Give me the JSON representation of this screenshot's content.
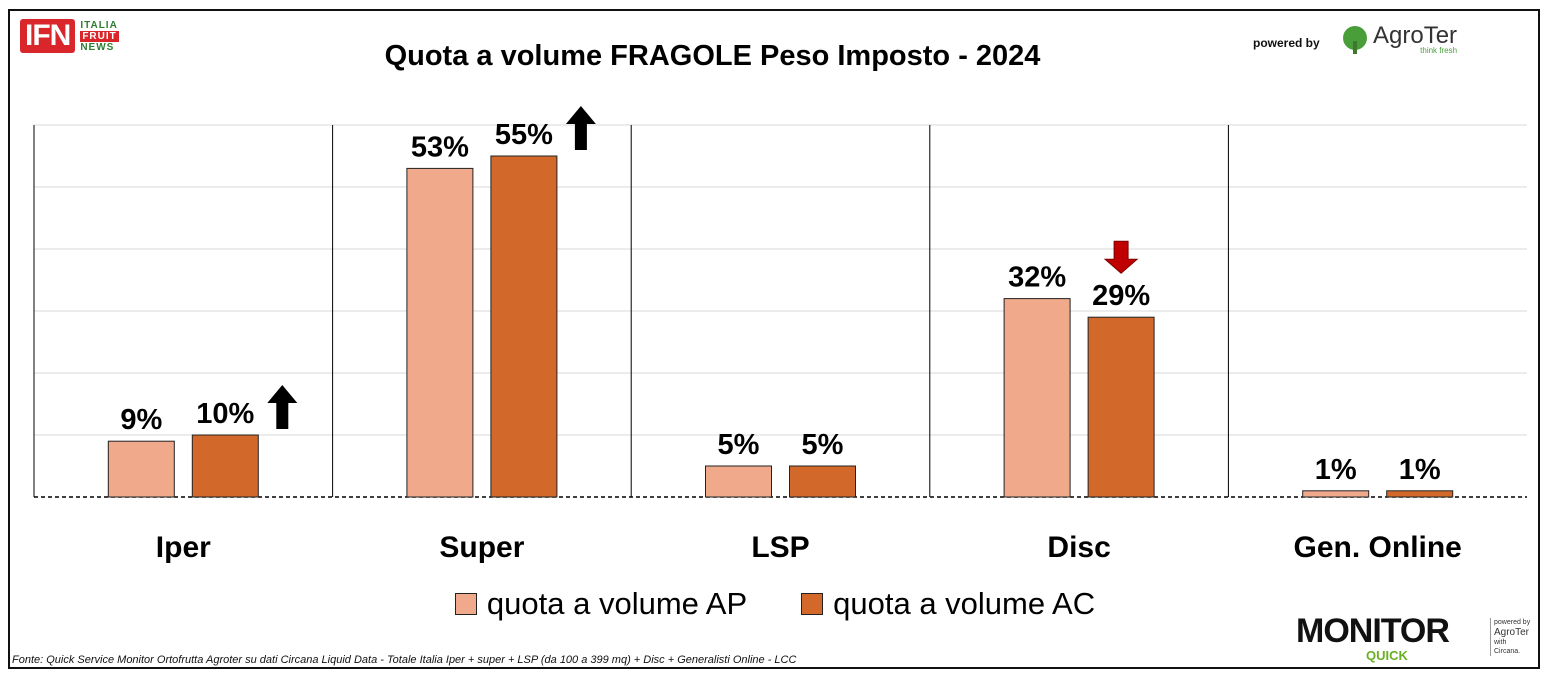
{
  "brand": {
    "ifn_mark": "IFN",
    "ifn_words": [
      "ITALIA",
      "FRUIT",
      "NEWS"
    ],
    "powered_by": "powered by",
    "agroter": "AgroTer",
    "agroter_tag": "think fresh",
    "monitor": "MONITOR",
    "quick": "QUICK",
    "side_powered": "powered by",
    "side_agroter": "AgroTer",
    "side_with": "with",
    "side_circana": "Circana."
  },
  "source": "Fonte: Quick Service Monitor Ortofrutta Agroter su dati Circana Liquid Data - Totale Italia Iper + super + LSP (da 100 a 399 mq) + Disc + Generalisti Online - LCC",
  "colors": {
    "ap": "#f0a98a",
    "ac": "#d2692a",
    "up_arrow": "#000000",
    "down_arrow": "#c00000"
  },
  "chart_data": {
    "type": "bar",
    "title": "Quota a volume FRAGOLE Peso Imposto - 2024",
    "categories": [
      "Iper",
      "Super",
      "LSP",
      "Disc",
      "Gen. Online"
    ],
    "series": [
      {
        "name": "quota a volume AP",
        "values": [
          9,
          53,
          5,
          32,
          1
        ],
        "labels": [
          "9%",
          "53%",
          "5%",
          "32%",
          "1%"
        ]
      },
      {
        "name": "quota a volume AC",
        "values": [
          10,
          55,
          5,
          29,
          1
        ],
        "labels": [
          "10%",
          "55%",
          "5%",
          "29%",
          "1%"
        ]
      }
    ],
    "trend_arrows": [
      "up",
      "up",
      "none",
      "down",
      "none"
    ],
    "ylim": [
      0,
      60
    ],
    "grid": true,
    "legend_position": "bottom"
  }
}
